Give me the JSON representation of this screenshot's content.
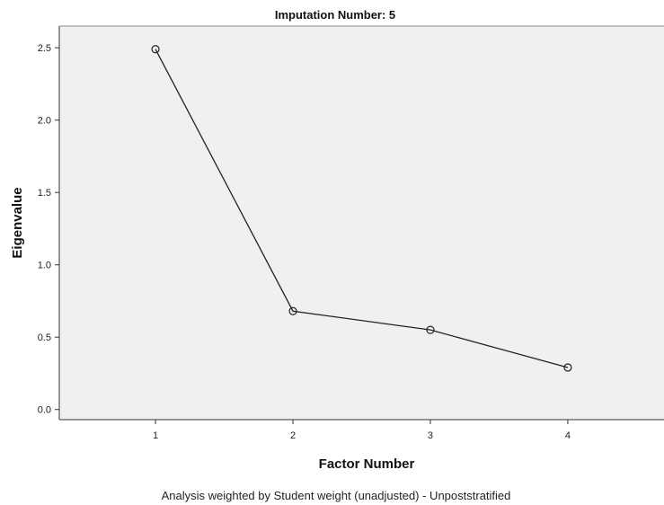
{
  "chart_data": {
    "type": "line",
    "title": "Imputation Number: 5",
    "xlabel": "Factor Number",
    "ylabel": "Eigenvalue",
    "footnote": "Analysis weighted by Student weight (unadjusted) - Unpoststratified",
    "x": [
      1,
      2,
      3,
      4
    ],
    "x_tick_labels": [
      "1",
      "2",
      "3",
      "4"
    ],
    "y_ticks": [
      0.0,
      0.5,
      1.0,
      1.5,
      2.0,
      2.5
    ],
    "y_tick_labels": [
      "0.0",
      "0.5",
      "1.0",
      "1.5",
      "2.0",
      "2.5"
    ],
    "xlim": [
      0.3,
      4.7
    ],
    "ylim": [
      -0.07,
      2.65
    ],
    "series": [
      {
        "values": [
          2.49,
          0.68,
          0.55,
          0.29
        ]
      }
    ],
    "marker": "open-circle",
    "grid": false,
    "colors": {
      "plot_background": "#f0f0f0",
      "line": "#222222",
      "axis": "#333333"
    }
  }
}
